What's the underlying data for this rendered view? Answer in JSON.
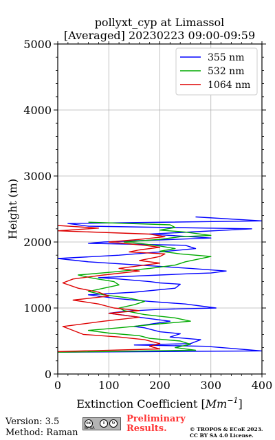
{
  "chart_data": {
    "type": "line",
    "title": "pollyxt_cyp at Limassol",
    "subtitle": "[Averaged] 20230223 09:00-09:59",
    "xlabel": "Extinction Coefficient [Mm⁻¹]",
    "xlabel_main": "Extinction Coefficient [",
    "xlabel_unit": "Mm",
    "xlabel_exp": "−1",
    "xlabel_end": "]",
    "ylabel": "Height (m)",
    "xlim": [
      0,
      400
    ],
    "ylim": [
      0,
      5000
    ],
    "xticks": [
      "0",
      "100",
      "200",
      "300",
      "400"
    ],
    "yticks": [
      "0",
      "1000",
      "2000",
      "3000",
      "4000",
      "5000"
    ],
    "grid": true,
    "legend_position": "top-right",
    "series": [
      {
        "name": "355 nm",
        "color": "#0000ff",
        "x": [
          0,
          400,
          290,
          150,
          260,
          280,
          220,
          240,
          200,
          170,
          150,
          220,
          180,
          140,
          100,
          130,
          200,
          310,
          250,
          180,
          120,
          60,
          150,
          230,
          240,
          200,
          180,
          120,
          80,
          140,
          200,
          260,
          300,
          330,
          260,
          60,
          0,
          120,
          200,
          270,
          250,
          60,
          90,
          300,
          180,
          380,
          60,
          20,
          400,
          270
        ],
        "y": [
          330,
          350,
          420,
          440,
          460,
          520,
          560,
          610,
          640,
          700,
          720,
          800,
          840,
          880,
          920,
          950,
          980,
          1000,
          1060,
          1100,
          1140,
          1200,
          1240,
          1300,
          1360,
          1380,
          1400,
          1440,
          1460,
          1480,
          1500,
          1520,
          1530,
          1560,
          1600,
          1700,
          1750,
          1800,
          1850,
          1900,
          1950,
          1980,
          2000,
          2060,
          2120,
          2200,
          2240,
          2280,
          2320,
          2380
        ]
      },
      {
        "name": "532 nm",
        "color": "#00aa00",
        "x": [
          0,
          270,
          230,
          260,
          240,
          180,
          160,
          100,
          60,
          120,
          200,
          260,
          230,
          170,
          130,
          120,
          150,
          170,
          140,
          90,
          60,
          90,
          120,
          110,
          70,
          40,
          100,
          180,
          230,
          250,
          300,
          240,
          200,
          230,
          200,
          160,
          130,
          200,
          240,
          300,
          250,
          200,
          230,
          220,
          60
        ],
        "y": [
          330,
          360,
          400,
          450,
          500,
          540,
          580,
          620,
          660,
          700,
          760,
          800,
          850,
          900,
          960,
          1000,
          1050,
          1100,
          1150,
          1200,
          1250,
          1300,
          1350,
          1400,
          1450,
          1500,
          1540,
          1600,
          1650,
          1700,
          1780,
          1820,
          1860,
          1900,
          1940,
          1980,
          2000,
          2040,
          2080,
          2100,
          2150,
          2180,
          2220,
          2260,
          2300
        ]
      },
      {
        "name": "1064 nm",
        "color": "#dd0000",
        "x": [
          0,
          200,
          180,
          200,
          170,
          120,
          50,
          30,
          10,
          90,
          160,
          100,
          160,
          110,
          80,
          30,
          100,
          80,
          40,
          10,
          30,
          90,
          160,
          120,
          200,
          160,
          200,
          210,
          140,
          160,
          200,
          170,
          100,
          160,
          210,
          180,
          0,
          80,
          0
        ],
        "y": [
          340,
          380,
          420,
          460,
          520,
          560,
          600,
          660,
          720,
          800,
          860,
          920,
          960,
          1000,
          1060,
          1120,
          1180,
          1240,
          1300,
          1380,
          1440,
          1500,
          1560,
          1600,
          1680,
          1720,
          1780,
          1820,
          1850,
          1880,
          1920,
          1950,
          2000,
          2040,
          2080,
          2120,
          2170,
          2210,
          2250
        ]
      }
    ]
  },
  "footer": {
    "version": "Version: 3.5",
    "method": "Method: Raman",
    "license_badge": "BY SA",
    "preliminary_line1": "Preliminary",
    "preliminary_line2": "Results.",
    "copyright_line1": "© TROPOS & ECoE 2023.",
    "copyright_line2": "CC BY SA 4.0 License."
  }
}
